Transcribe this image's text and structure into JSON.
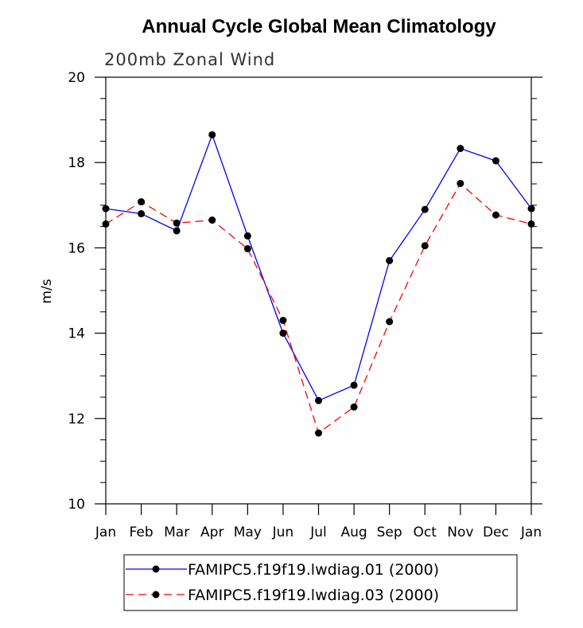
{
  "chart_data": {
    "type": "line",
    "title": "Annual Cycle Global Mean Climatology",
    "subtitle": "200mb Zonal Wind",
    "xlabel": "",
    "ylabel": "m/s",
    "ylim": [
      10,
      20
    ],
    "yticks": [
      10,
      12,
      14,
      16,
      18,
      20
    ],
    "grid": false,
    "legend_position": "bottom-center",
    "categories": [
      "Jan",
      "Feb",
      "Mar",
      "Apr",
      "May",
      "Jun",
      "Jul",
      "Aug",
      "Sep",
      "Oct",
      "Nov",
      "Dec",
      "Jan"
    ],
    "series": [
      {
        "name": "FAMIPC5.f19f19.lwdiag.01 (2000)",
        "color": "#0000ff",
        "line_style": "solid",
        "marker": "dot",
        "values": [
          16.92,
          16.8,
          16.4,
          18.65,
          16.28,
          14.0,
          12.42,
          12.78,
          15.7,
          16.9,
          18.33,
          18.04,
          16.92
        ]
      },
      {
        "name": "FAMIPC5.f19f19.lwdiag.03 (2000)",
        "color": "#ff0000",
        "line_style": "dashed",
        "marker": "dot",
        "values": [
          16.56,
          17.08,
          16.58,
          16.65,
          15.98,
          14.3,
          11.66,
          12.27,
          14.27,
          16.05,
          17.51,
          16.77,
          16.56
        ]
      }
    ]
  }
}
